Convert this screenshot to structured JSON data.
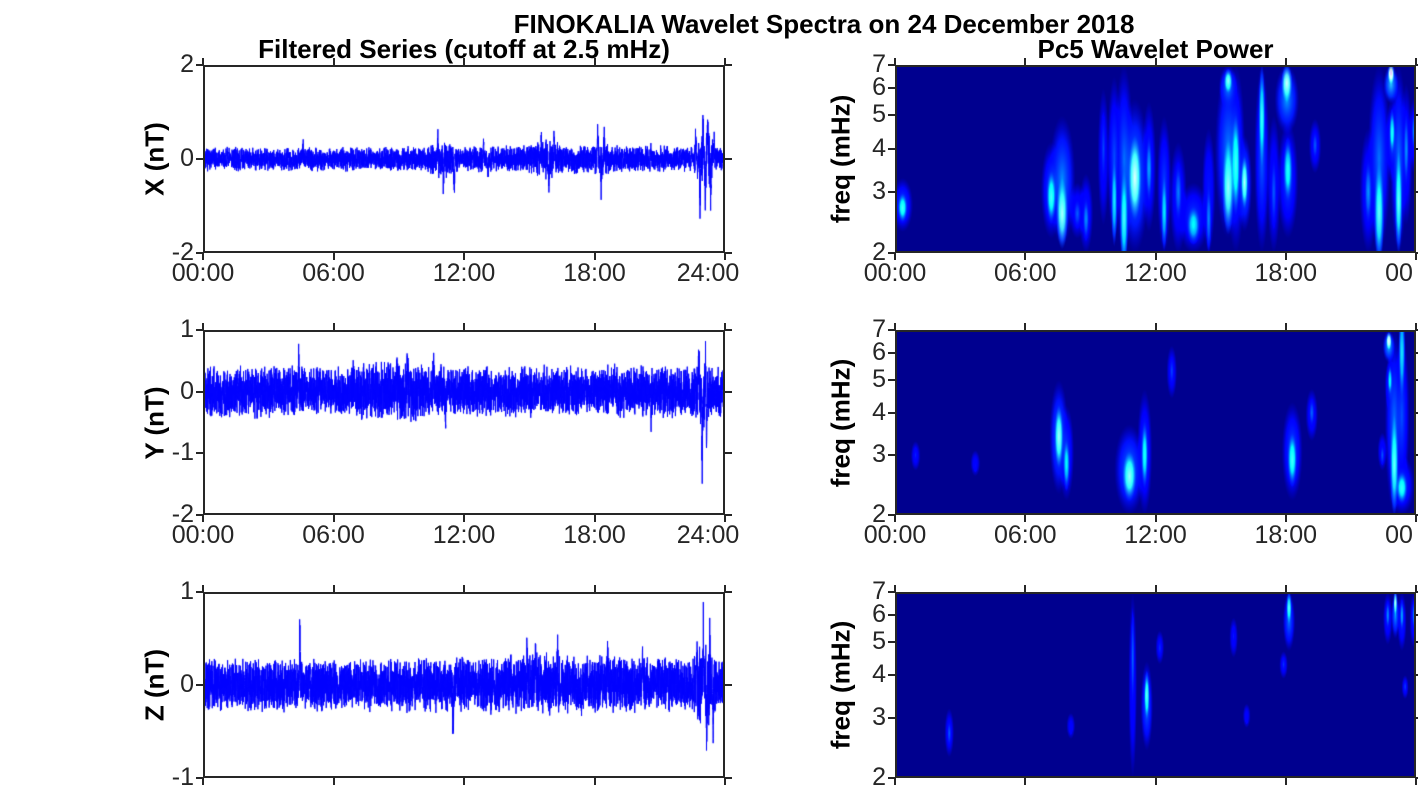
{
  "figure": {
    "suptitle": "FINOKALIA Wavelet Spectra on 24 December 2018"
  },
  "time_axis": {
    "tick_hours": [
      0,
      6,
      12,
      18,
      24
    ],
    "left_tick_labels": [
      "00:00",
      "06:00",
      "12:00",
      "18:00",
      "24:00"
    ],
    "right_tick_labels": [
      "00:00",
      "06:00",
      "12:00",
      "18:00",
      "00"
    ]
  },
  "colors": {
    "signal": "#0000FF",
    "axis": "#262626",
    "spectrogram_background": "#00008F",
    "colormap": "jet"
  },
  "chart_data": [
    {
      "type": "line",
      "name": "X filtered series",
      "title": "Filtered Series (cutoff at 2.5 mHz)",
      "ylabel": "X (nT)",
      "ylim": [
        -2,
        2
      ],
      "yticks": [
        2,
        0,
        -2
      ],
      "ytick_labels": [
        "2",
        "0",
        "-2"
      ],
      "xlim_hours": [
        0,
        24
      ],
      "series_color": "#0000FF",
      "signal": {
        "seed": 7,
        "base_amplitude": 0.17,
        "bumps": [
          {
            "t": 11.0,
            "a": 0.1,
            "s": 0.5
          },
          {
            "t": 15.8,
            "a": 0.1,
            "s": 0.5
          },
          {
            "t": 18.3,
            "a": 0.12,
            "s": 0.3
          },
          {
            "t": 23.1,
            "a": 0.28,
            "s": 0.35
          },
          {
            "t": 17.0,
            "a": 0.03,
            "s": 5.0
          }
        ],
        "spikes": [
          {
            "t": 4.6,
            "a": 0.28
          },
          {
            "t": 10.8,
            "a": 0.5
          },
          {
            "t": 11.05,
            "a": -0.45
          },
          {
            "t": 11.55,
            "a": -0.72
          },
          {
            "t": 12.9,
            "a": 0.45
          },
          {
            "t": 13.1,
            "a": -0.4
          },
          {
            "t": 15.55,
            "a": 0.5
          },
          {
            "t": 15.9,
            "a": -0.62
          },
          {
            "t": 16.15,
            "a": 0.5
          },
          {
            "t": 17.1,
            "a": -0.35
          },
          {
            "t": 18.15,
            "a": 0.72
          },
          {
            "t": 18.3,
            "a": -0.55
          },
          {
            "t": 18.45,
            "a": 0.5
          },
          {
            "t": 20.6,
            "a": 0.3
          },
          {
            "t": 22.65,
            "a": 0.55
          },
          {
            "t": 22.85,
            "a": -0.9
          },
          {
            "t": 23.0,
            "a": 1.05
          },
          {
            "t": 23.1,
            "a": -1.25
          },
          {
            "t": 23.2,
            "a": 1.0
          },
          {
            "t": 23.35,
            "a": -0.8
          },
          {
            "t": 23.5,
            "a": 0.6
          }
        ]
      }
    },
    {
      "type": "line",
      "name": "Y filtered series",
      "ylabel": "Y (nT)",
      "ylim": [
        -2,
        1
      ],
      "yticks": [
        1,
        0,
        -1,
        -2
      ],
      "ytick_labels": [
        "1",
        "0",
        "-1",
        "-2"
      ],
      "xlim_hours": [
        0,
        24
      ],
      "series_color": "#0000FF",
      "signal": {
        "seed": 11,
        "base_amplitude": 0.28,
        "bumps": [
          {
            "t": 9.0,
            "a": 0.06,
            "s": 1.5
          },
          {
            "t": 23.0,
            "a": 0.12,
            "s": 0.3
          }
        ],
        "spikes": [
          {
            "t": 4.4,
            "a": 0.55
          },
          {
            "t": 6.9,
            "a": 0.3
          },
          {
            "t": 8.9,
            "a": 0.45
          },
          {
            "t": 9.4,
            "a": 0.35
          },
          {
            "t": 10.6,
            "a": 0.35
          },
          {
            "t": 11.15,
            "a": -0.62
          },
          {
            "t": 18.9,
            "a": 0.35
          },
          {
            "t": 20.6,
            "a": -0.4
          },
          {
            "t": 22.8,
            "a": 0.65
          },
          {
            "t": 22.95,
            "a": -1.0
          },
          {
            "t": 23.1,
            "a": 0.55
          },
          {
            "t": 23.15,
            "a": -0.9
          }
        ]
      }
    },
    {
      "type": "line",
      "name": "Z filtered series",
      "ylabel": "Z (nT)",
      "ylim": [
        -1,
        1
      ],
      "yticks": [
        1,
        0,
        -1
      ],
      "ytick_labels": [
        "1",
        "0",
        "-1"
      ],
      "xlim_hours": [
        0,
        24
      ],
      "series_color": "#0000FF",
      "signal": {
        "seed": 13,
        "base_amplitude": 0.19,
        "bumps": [
          {
            "t": 23.1,
            "a": 0.15,
            "s": 0.35
          },
          {
            "t": 16.0,
            "a": 0.03,
            "s": 4.0
          }
        ],
        "spikes": [
          {
            "t": 4.45,
            "a": 0.52
          },
          {
            "t": 11.5,
            "a": -0.62
          },
          {
            "t": 14.9,
            "a": 0.38
          },
          {
            "t": 15.3,
            "a": 0.4
          },
          {
            "t": 16.3,
            "a": 0.3
          },
          {
            "t": 18.6,
            "a": 0.35
          },
          {
            "t": 20.2,
            "a": 0.3
          },
          {
            "t": 22.7,
            "a": 0.45
          },
          {
            "t": 23.0,
            "a": 0.55
          },
          {
            "t": 23.15,
            "a": -0.5
          },
          {
            "t": 23.3,
            "a": 0.5
          },
          {
            "t": 23.45,
            "a": -0.45
          }
        ]
      }
    },
    {
      "type": "heatmap",
      "name": "X wavelet power",
      "title": "Pc5 Wavelet Power",
      "ylabel": "freq (mHz)",
      "yscale": "log",
      "ylim": [
        2,
        7
      ],
      "yticks": [
        7,
        6,
        5,
        4,
        3,
        2
      ],
      "ytick_labels": [
        "7",
        "6",
        "5",
        "4",
        "3",
        "2"
      ],
      "xlim_hours": [
        0,
        24
      ],
      "colormap": "jet",
      "background": "#00008F",
      "events": [
        {
          "t": 0.35,
          "f": [
            2.3,
            3.3
          ],
          "p": 2.7,
          "v": 0.5,
          "w": 0.22
        },
        {
          "t": 7.2,
          "f": [
            2.2,
            4.2
          ],
          "p": 2.9,
          "v": 0.5,
          "w": 0.22
        },
        {
          "t": 7.7,
          "f": [
            2.1,
            5.0
          ],
          "p": 2.6,
          "v": 0.62,
          "w": 0.28
        },
        {
          "t": 8.4,
          "f": [
            2.2,
            3.2
          ],
          "p": 2.6,
          "v": 0.25,
          "w": 0.18
        },
        {
          "t": 8.8,
          "f": [
            2.0,
            3.4
          ],
          "p": 2.5,
          "v": 0.3,
          "w": 0.15
        },
        {
          "t": 9.6,
          "f": [
            2.4,
            6.0
          ],
          "p": 4.0,
          "v": 0.22,
          "w": 0.12
        },
        {
          "t": 10.1,
          "f": [
            2.2,
            6.5
          ],
          "p": 2.8,
          "v": 0.45,
          "w": 0.15
        },
        {
          "t": 10.55,
          "f": [
            2.0,
            7.0
          ],
          "p": 2.5,
          "v": 0.52,
          "w": 0.2
        },
        {
          "t": 11.05,
          "f": [
            2.0,
            5.6
          ],
          "p": 3.3,
          "v": 0.68,
          "w": 0.3
        },
        {
          "t": 11.7,
          "f": [
            2.3,
            5.5
          ],
          "p": 3.5,
          "v": 0.32,
          "w": 0.15
        },
        {
          "t": 12.4,
          "f": [
            2.0,
            5.0
          ],
          "p": 2.6,
          "v": 0.42,
          "w": 0.15
        },
        {
          "t": 13.05,
          "f": [
            2.0,
            4.2
          ],
          "p": 3.0,
          "v": 0.28,
          "w": 0.18
        },
        {
          "t": 13.75,
          "f": [
            2.0,
            3.2
          ],
          "p": 2.4,
          "v": 0.42,
          "w": 0.32
        },
        {
          "t": 14.45,
          "f": [
            2.0,
            4.6
          ],
          "p": 2.5,
          "v": 0.3,
          "w": 0.14
        },
        {
          "t": 15.35,
          "f": [
            2.2,
            7.0
          ],
          "p": 3.1,
          "v": 0.6,
          "w": 0.28
        },
        {
          "t": 15.35,
          "f": [
            5.2,
            7.0
          ],
          "p": 6.3,
          "v": 0.6,
          "w": 0.2
        },
        {
          "t": 15.7,
          "f": [
            2.0,
            7.0
          ],
          "p": 3.6,
          "v": 0.5,
          "w": 0.2
        },
        {
          "t": 16.1,
          "f": [
            2.3,
            4.4
          ],
          "p": 3.2,
          "v": 0.63,
          "w": 0.16
        },
        {
          "t": 16.9,
          "f": [
            2.0,
            7.0
          ],
          "p": 5.0,
          "v": 0.5,
          "w": 0.16
        },
        {
          "t": 17.45,
          "f": [
            2.0,
            5.0
          ],
          "p": 3.0,
          "v": 0.25,
          "w": 0.14
        },
        {
          "t": 18.05,
          "f": [
            4.4,
            7.0
          ],
          "p": 6.2,
          "v": 0.66,
          "w": 0.26
        },
        {
          "t": 18.1,
          "f": [
            2.2,
            4.8
          ],
          "p": 3.5,
          "v": 0.45,
          "w": 0.22
        },
        {
          "t": 19.35,
          "f": [
            3.4,
            4.9
          ],
          "p": 4.1,
          "v": 0.25,
          "w": 0.13
        },
        {
          "t": 21.8,
          "f": [
            2.0,
            4.6
          ],
          "p": 3.0,
          "v": 0.3,
          "w": 0.18
        },
        {
          "t": 22.3,
          "f": [
            2.0,
            7.0
          ],
          "p": 2.6,
          "v": 0.55,
          "w": 0.24
        },
        {
          "t": 22.85,
          "f": [
            5.4,
            7.0
          ],
          "p": 6.6,
          "v": 0.85,
          "w": 0.16
        },
        {
          "t": 22.9,
          "f": [
            3.2,
            5.6
          ],
          "p": 4.5,
          "v": 0.45,
          "w": 0.14
        },
        {
          "t": 23.2,
          "f": [
            2.0,
            7.0
          ],
          "p": 2.8,
          "v": 0.55,
          "w": 0.18
        },
        {
          "t": 23.55,
          "f": [
            2.4,
            6.2
          ],
          "p": 4.0,
          "v": 0.3,
          "w": 0.13
        },
        {
          "t": 23.9,
          "f": [
            3.4,
            5.6
          ],
          "p": 4.5,
          "v": 0.28,
          "w": 0.11
        }
      ]
    },
    {
      "type": "heatmap",
      "name": "Y wavelet power",
      "ylabel": "freq (mHz)",
      "yscale": "log",
      "ylim": [
        2,
        7
      ],
      "yticks": [
        7,
        6,
        5,
        4,
        3,
        2
      ],
      "ytick_labels": [
        "7",
        "6",
        "5",
        "4",
        "3",
        "2"
      ],
      "xlim_hours": [
        0,
        24
      ],
      "colormap": "jet",
      "background": "#00008F",
      "events": [
        {
          "t": 0.95,
          "f": [
            2.7,
            3.3
          ],
          "p": 3.0,
          "v": 0.18,
          "w": 0.1
        },
        {
          "t": 3.7,
          "f": [
            2.6,
            3.1
          ],
          "p": 2.8,
          "v": 0.15,
          "w": 0.1
        },
        {
          "t": 7.55,
          "f": [
            2.3,
            5.0
          ],
          "p": 3.4,
          "v": 0.62,
          "w": 0.2
        },
        {
          "t": 7.9,
          "f": [
            2.2,
            4.2
          ],
          "p": 2.8,
          "v": 0.42,
          "w": 0.16
        },
        {
          "t": 10.8,
          "f": [
            2.0,
            3.7
          ],
          "p": 2.6,
          "v": 0.6,
          "w": 0.32
        },
        {
          "t": 11.5,
          "f": [
            2.0,
            4.7
          ],
          "p": 3.0,
          "v": 0.45,
          "w": 0.16
        },
        {
          "t": 12.75,
          "f": [
            4.4,
            6.3
          ],
          "p": 5.3,
          "v": 0.22,
          "w": 0.11
        },
        {
          "t": 18.3,
          "f": [
            2.2,
            4.3
          ],
          "p": 2.9,
          "v": 0.5,
          "w": 0.22
        },
        {
          "t": 19.2,
          "f": [
            3.3,
            4.7
          ],
          "p": 4.0,
          "v": 0.26,
          "w": 0.13
        },
        {
          "t": 22.45,
          "f": [
            2.7,
            3.5
          ],
          "p": 3.0,
          "v": 0.24,
          "w": 0.1
        },
        {
          "t": 22.75,
          "f": [
            5.6,
            7.0
          ],
          "p": 6.5,
          "v": 0.8,
          "w": 0.13
        },
        {
          "t": 22.8,
          "f": [
            4.0,
            5.8
          ],
          "p": 5.0,
          "v": 0.42,
          "w": 0.11
        },
        {
          "t": 23.0,
          "f": [
            2.0,
            7.0
          ],
          "p": 2.8,
          "v": 0.55,
          "w": 0.2
        },
        {
          "t": 23.35,
          "f": [
            2.2,
            7.0
          ],
          "p": 6.0,
          "v": 0.45,
          "w": 0.16
        },
        {
          "t": 23.35,
          "f": [
            2.0,
            3.0
          ],
          "p": 2.4,
          "v": 0.48,
          "w": 0.26
        }
      ]
    },
    {
      "type": "heatmap",
      "name": "Z wavelet power",
      "ylabel": "freq (mHz)",
      "yscale": "log",
      "ylim": [
        2,
        7
      ],
      "yticks": [
        7,
        6,
        5,
        4,
        3,
        2
      ],
      "ytick_labels": [
        "7",
        "6",
        "5",
        "4",
        "3",
        "2"
      ],
      "xlim_hours": [
        0,
        24
      ],
      "colormap": "jet",
      "background": "#00008F",
      "events": [
        {
          "t": 2.5,
          "f": [
            2.3,
            3.2
          ],
          "p": 2.7,
          "v": 0.25,
          "w": 0.1
        },
        {
          "t": 8.1,
          "f": [
            2.6,
            3.1
          ],
          "p": 2.8,
          "v": 0.14,
          "w": 0.09
        },
        {
          "t": 10.95,
          "f": [
            2.0,
            7.0
          ],
          "p": 4.5,
          "v": 0.26,
          "w": 0.09
        },
        {
          "t": 11.6,
          "f": [
            2.4,
            4.4
          ],
          "p": 3.5,
          "v": 0.55,
          "w": 0.13
        },
        {
          "t": 12.2,
          "f": [
            4.3,
            5.4
          ],
          "p": 4.8,
          "v": 0.2,
          "w": 0.09
        },
        {
          "t": 15.6,
          "f": [
            4.5,
            5.9
          ],
          "p": 5.2,
          "v": 0.17,
          "w": 0.09
        },
        {
          "t": 16.2,
          "f": [
            2.8,
            3.3
          ],
          "p": 3.0,
          "v": 0.14,
          "w": 0.08
        },
        {
          "t": 17.9,
          "f": [
            3.9,
            4.7
          ],
          "p": 4.3,
          "v": 0.2,
          "w": 0.09
        },
        {
          "t": 18.15,
          "f": [
            4.7,
            7.0
          ],
          "p": 6.3,
          "v": 0.55,
          "w": 0.13
        },
        {
          "t": 22.7,
          "f": [
            4.9,
            7.0
          ],
          "p": 6.0,
          "v": 0.3,
          "w": 0.1
        },
        {
          "t": 23.05,
          "f": [
            5.1,
            7.0
          ],
          "p": 6.5,
          "v": 0.66,
          "w": 0.09
        },
        {
          "t": 23.35,
          "f": [
            4.7,
            7.0
          ],
          "p": 6.0,
          "v": 0.33,
          "w": 0.1
        },
        {
          "t": 23.5,
          "f": [
            3.4,
            4.0
          ],
          "p": 3.7,
          "v": 0.22,
          "w": 0.07
        },
        {
          "t": 23.9,
          "f": [
            4.8,
            7.0
          ],
          "p": 6.0,
          "v": 0.28,
          "w": 0.09
        }
      ]
    }
  ]
}
